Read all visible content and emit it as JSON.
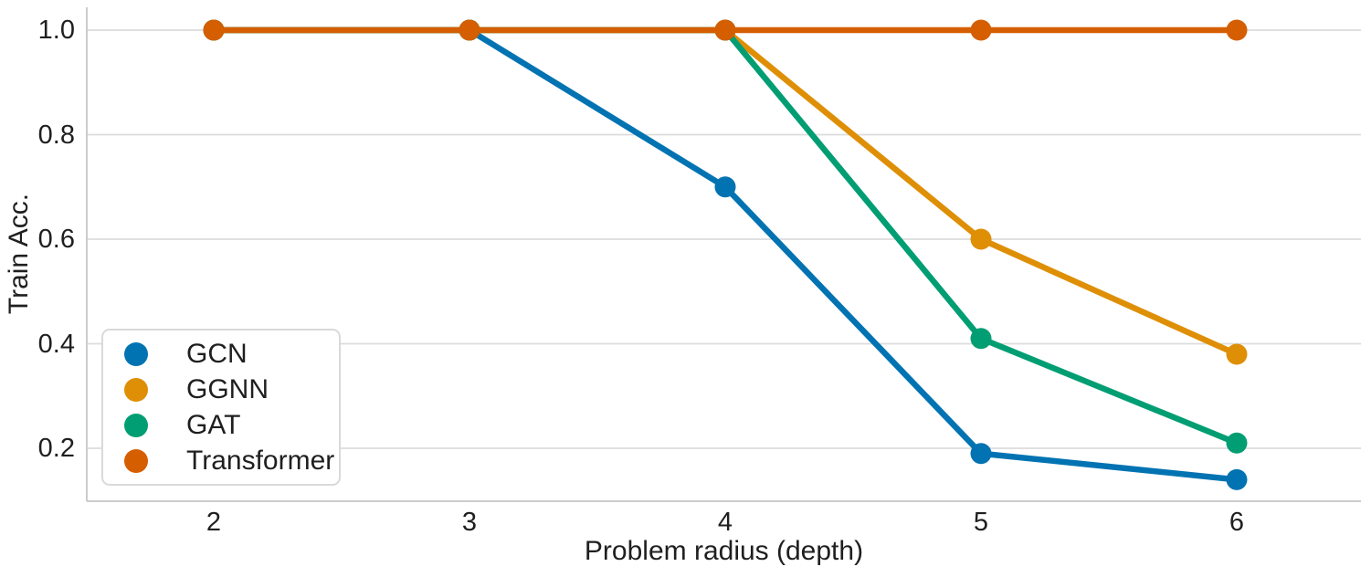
{
  "chart_data": {
    "type": "line",
    "title": "",
    "xlabel": "Problem radius (depth)",
    "ylabel": "Train Acc.",
    "x": [
      2,
      3,
      4,
      5,
      6
    ],
    "xticks": [
      "2",
      "3",
      "4",
      "5",
      "6"
    ],
    "yticks": [
      "1.0",
      "0.8",
      "0.6",
      "0.4",
      "0.2"
    ],
    "ytick_values": [
      1.0,
      0.8,
      0.6,
      0.4,
      0.2
    ],
    "xlim": [
      1.51,
      6.49
    ],
    "ylim": [
      0.095,
      1.044
    ],
    "grid": "horizontal",
    "legend_position": "lower left",
    "marker": "circle",
    "colors": {
      "background": "#ffffff",
      "gridline": "#dcdcdc",
      "spine": "#cccccc",
      "text": "#1f1f1f",
      "legend_border": "#d9d9d9"
    },
    "series": [
      {
        "name": "GCN",
        "color": "#0173b2",
        "values": [
          1.0,
          1.0,
          0.7,
          0.19,
          0.14
        ]
      },
      {
        "name": "GGNN",
        "color": "#de8f05",
        "values": [
          1.0,
          1.0,
          1.0,
          0.6,
          0.38
        ]
      },
      {
        "name": "GAT",
        "color": "#029e73",
        "values": [
          1.0,
          1.0,
          1.0,
          0.41,
          0.21
        ]
      },
      {
        "name": "Transformer",
        "color": "#d55e00",
        "values": [
          1.0,
          1.0,
          1.0,
          1.0,
          1.0
        ]
      }
    ]
  }
}
